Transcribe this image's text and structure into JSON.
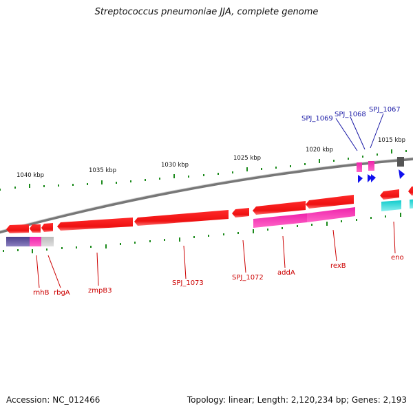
{
  "title": "Streptococcus pneumoniae JJA, complete genome",
  "footer": {
    "accession": "Accession: NC_012466",
    "summary": "Topology: linear; Length: 2,120,234 bp; Genes: 2,193"
  },
  "colors": {
    "gene_red": "#ee1111",
    "rna_magenta": "#ee22aa",
    "cds_cyan": "#11cccc",
    "cog_navy": "#4b3f8c",
    "cog_gray": "#bbbbbb",
    "pseudo_dark": "#555555",
    "strand_blue": "#1010ee",
    "tick_green": "#1b8a1b",
    "backbone": "#888888",
    "label_red": "#cc0000",
    "label_blue": "#1a1aa6"
  },
  "scale_ticks": [
    "1040 kbp",
    "1035 kbp",
    "1030 kbp",
    "1025 kbp",
    "1020 kbp",
    "1015 kbp"
  ],
  "top_labels": [
    "SPJ_1069",
    "SPJ_1068",
    "SPJ_1067"
  ],
  "bottom_labels": [
    "rnhB",
    "rbgA",
    "zmpB3",
    "SPJ_1073",
    "SPJ_1072",
    "addA",
    "rexB",
    "eno"
  ]
}
